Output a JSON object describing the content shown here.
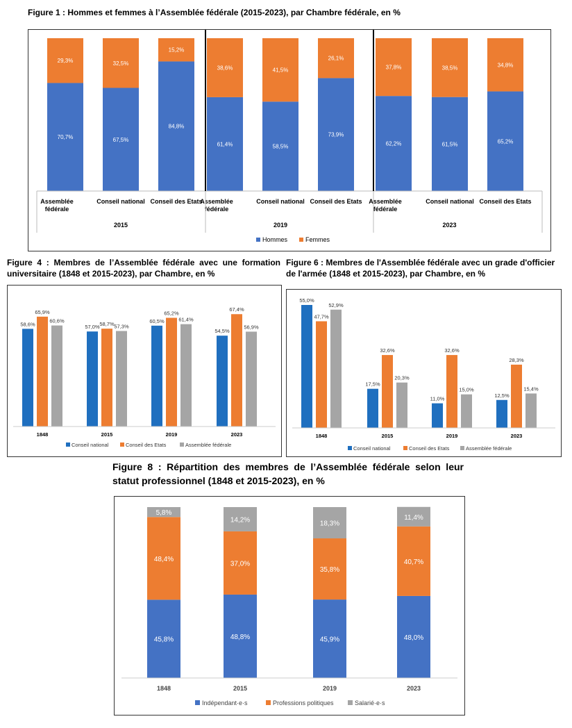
{
  "colors": {
    "blue": "#4472C4",
    "orange": "#ED7D31",
    "gray": "#A5A5A5",
    "dark_blue": "#1F6FBF"
  },
  "figure1_title": "Figure 1 : Hommes et femmes à l’Assemblée fédérale (2015-2023), par Chambre fédérale, en %",
  "figure4_title": "Figure 4 : Membres de l’Assemblée fédérale avec une formation universitaire (1848 et 2015-2023), par Chambre, en %",
  "figure6_title": "Figure 6 : Membres de l'Assemblée fédérale avec un grade d'officier de l'armée (1848 et 2015-2023), par Chambre, en %",
  "figure8_title": "Figure 8 : Répartition des membres de l’Assemblée fédérale selon leur statut professionnel (1848 et 2015-2023), en %",
  "chart_data": [
    {
      "id": "fig1",
      "type": "bar",
      "stacked": true,
      "groups": [
        "2015",
        "2019",
        "2023"
      ],
      "categories": [
        "Assemblée fédérale",
        "Conseil national",
        "Conseil des Etats"
      ],
      "series": [
        {
          "name": "Hommes",
          "values": [
            [
              70.7,
              67.5,
              84.8
            ],
            [
              61.4,
              58.5,
              73.9
            ],
            [
              62.2,
              61.5,
              65.2
            ]
          ],
          "labels": [
            [
              "70,7%",
              "67,5%",
              "84,8%"
            ],
            [
              "61,4%",
              "58,5%",
              "73,9%"
            ],
            [
              "62,2%",
              "61,5%",
              "65,2%"
            ]
          ]
        },
        {
          "name": "Femmes",
          "values": [
            [
              29.3,
              32.5,
              15.2
            ],
            [
              38.6,
              41.5,
              26.1
            ],
            [
              37.8,
              38.5,
              34.8
            ]
          ],
          "labels": [
            [
              "29,3%",
              "32,5%",
              "15,2%"
            ],
            [
              "38,6%",
              "41,5%",
              "26,1%"
            ],
            [
              "37,8%",
              "38,5%",
              "34,8%"
            ]
          ]
        }
      ],
      "ylim": [
        0,
        100
      ],
      "legend": "bottom"
    },
    {
      "id": "fig4",
      "type": "bar",
      "categories": [
        "1848",
        "2015",
        "2019",
        "2023"
      ],
      "series": [
        {
          "name": "Conseil national",
          "values": [
            58.6,
            57.0,
            60.5,
            54.5
          ],
          "labels": [
            "58,6%",
            "57,0%",
            "60,5%",
            "54,5%"
          ]
        },
        {
          "name": "Conseil des Etats",
          "values": [
            65.9,
            58.7,
            65.2,
            67.4
          ],
          "labels": [
            "65,9%",
            "58,7%",
            "65,2%",
            "67,4%"
          ]
        },
        {
          "name": "Assemblée fédérale",
          "values": [
            60.6,
            57.3,
            61.4,
            56.9
          ],
          "labels": [
            "60,6%",
            "57,3%",
            "61,4%",
            "56,9%"
          ]
        }
      ],
      "ylim": [
        0,
        100
      ],
      "legend": "bottom"
    },
    {
      "id": "fig6",
      "type": "bar",
      "categories": [
        "1848",
        "2015",
        "2019",
        "2023"
      ],
      "series": [
        {
          "name": "Conseil national",
          "values": [
            55.0,
            17.5,
            11.0,
            12.5
          ],
          "labels": [
            "55,0%",
            "17,5%",
            "11,0%",
            "12,5%"
          ]
        },
        {
          "name": "Conseil des Etats",
          "values": [
            47.7,
            32.6,
            32.6,
            28.3
          ],
          "labels": [
            "47,7%",
            "32,6%",
            "32,6%",
            "28,3%"
          ]
        },
        {
          "name": "Assemblée fédérale",
          "values": [
            52.9,
            20.3,
            15.0,
            15.4
          ],
          "labels": [
            "52,9%",
            "20,3%",
            "15,0%",
            "15,4%"
          ]
        }
      ],
      "ylim": [
        0,
        60
      ],
      "legend": "bottom"
    },
    {
      "id": "fig8",
      "type": "bar",
      "stacked": true,
      "categories": [
        "1848",
        "2015",
        "2019",
        "2023"
      ],
      "series": [
        {
          "name": "Indépendant·e·s",
          "values": [
            45.8,
            48.8,
            45.9,
            48.0
          ],
          "labels": [
            "45,8%",
            "48,8%",
            "45,9%",
            "48,0%"
          ]
        },
        {
          "name": "Professions politiques",
          "values": [
            48.4,
            37.0,
            35.8,
            40.7
          ],
          "labels": [
            "48,4%",
            "37,0%",
            "35,8%",
            "40,7%"
          ]
        },
        {
          "name": "Salarié·e·s",
          "values": [
            5.8,
            14.2,
            18.3,
            11.4
          ],
          "labels": [
            "5,8%",
            "14,2%",
            "18,3%",
            "11,4%"
          ]
        }
      ],
      "ylim": [
        0,
        100
      ],
      "legend": "bottom"
    }
  ]
}
